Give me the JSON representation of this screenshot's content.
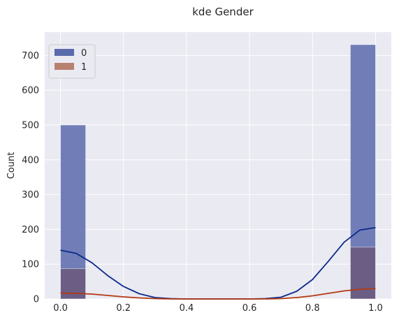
{
  "chart_data": {
    "type": "histogram",
    "title": "kde Gender",
    "xlabel": "",
    "ylabel": "Count",
    "xlim": [
      -0.05,
      1.05
    ],
    "ylim": [
      0,
      767
    ],
    "xticks": [
      "0.0",
      "0.2",
      "0.4",
      "0.6",
      "0.8",
      "1.0"
    ],
    "xtick_values": [
      0.0,
      0.2,
      0.4,
      0.6,
      0.8,
      1.0
    ],
    "yticks": [
      "0",
      "100",
      "200",
      "300",
      "400",
      "500",
      "600",
      "700"
    ],
    "ytick_values": [
      0,
      100,
      200,
      300,
      400,
      500,
      600,
      700
    ],
    "grid": true,
    "legend_position": "top-left",
    "bins": [
      [
        0.0,
        0.08
      ],
      [
        0.92,
        1.0
      ]
    ],
    "series": [
      {
        "name": "0",
        "color": "#0d2a8a",
        "fill": "#5a6aad",
        "counts": [
          500,
          731
        ],
        "kde": {
          "x": [
            0.0,
            0.05,
            0.1,
            0.15,
            0.2,
            0.25,
            0.3,
            0.35,
            0.4,
            0.45,
            0.5,
            0.55,
            0.6,
            0.65,
            0.7,
            0.75,
            0.8,
            0.85,
            0.9,
            0.95,
            1.0
          ],
          "y": [
            140,
            131,
            104,
            67,
            36,
            15,
            4,
            1,
            0,
            0,
            0,
            0,
            0,
            1,
            5,
            22,
            56,
            108,
            163,
            198,
            205
          ]
        }
      },
      {
        "name": "1",
        "color": "#b33912",
        "fill": "#b8816f",
        "counts": [
          87,
          149
        ],
        "kde": {
          "x": [
            0.0,
            0.05,
            0.1,
            0.15,
            0.2,
            0.25,
            0.3,
            0.35,
            0.4,
            0.45,
            0.5,
            0.55,
            0.6,
            0.65,
            0.7,
            0.75,
            0.8,
            0.85,
            0.9,
            0.95,
            1.0
          ],
          "y": [
            17,
            16,
            14,
            10,
            6,
            3,
            1,
            0,
            0,
            0,
            0,
            0,
            0,
            0,
            1,
            4,
            9,
            16,
            23,
            28,
            30
          ]
        }
      }
    ],
    "colors": {
      "background": "#eaeaf2",
      "grid": "#ffffff",
      "overlap_fill": "#6a5a7e"
    }
  }
}
